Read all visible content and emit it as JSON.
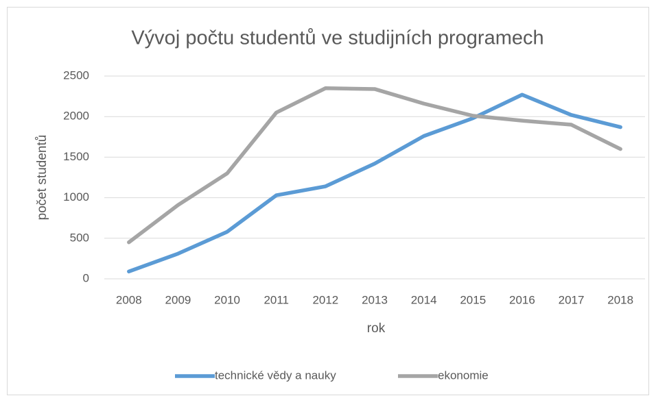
{
  "chart_data": {
    "type": "line",
    "title": "Vývoj počtu studentů ve studijních programech",
    "x_label": "rok",
    "y_label": "počet studentů",
    "categories": [
      "2008",
      "2009",
      "2010",
      "2011",
      "2012",
      "2013",
      "2014",
      "2015",
      "2016",
      "2017",
      "2018"
    ],
    "series": [
      {
        "name": "technické vědy a nauky",
        "color": "#5b9bd5",
        "values": [
          90,
          310,
          580,
          1030,
          1140,
          1420,
          1760,
          1980,
          2270,
          2020,
          1870
        ]
      },
      {
        "name": "ekonomie",
        "color": "#a5a5a5",
        "values": [
          450,
          910,
          1300,
          2050,
          2350,
          2340,
          2160,
          2010,
          1950,
          1900,
          1600
        ]
      }
    ],
    "ylim": [
      0,
      2500
    ],
    "yticks": [
      0,
      500,
      1000,
      1500,
      2000,
      2500
    ],
    "grid": true,
    "legend": "bottom"
  }
}
